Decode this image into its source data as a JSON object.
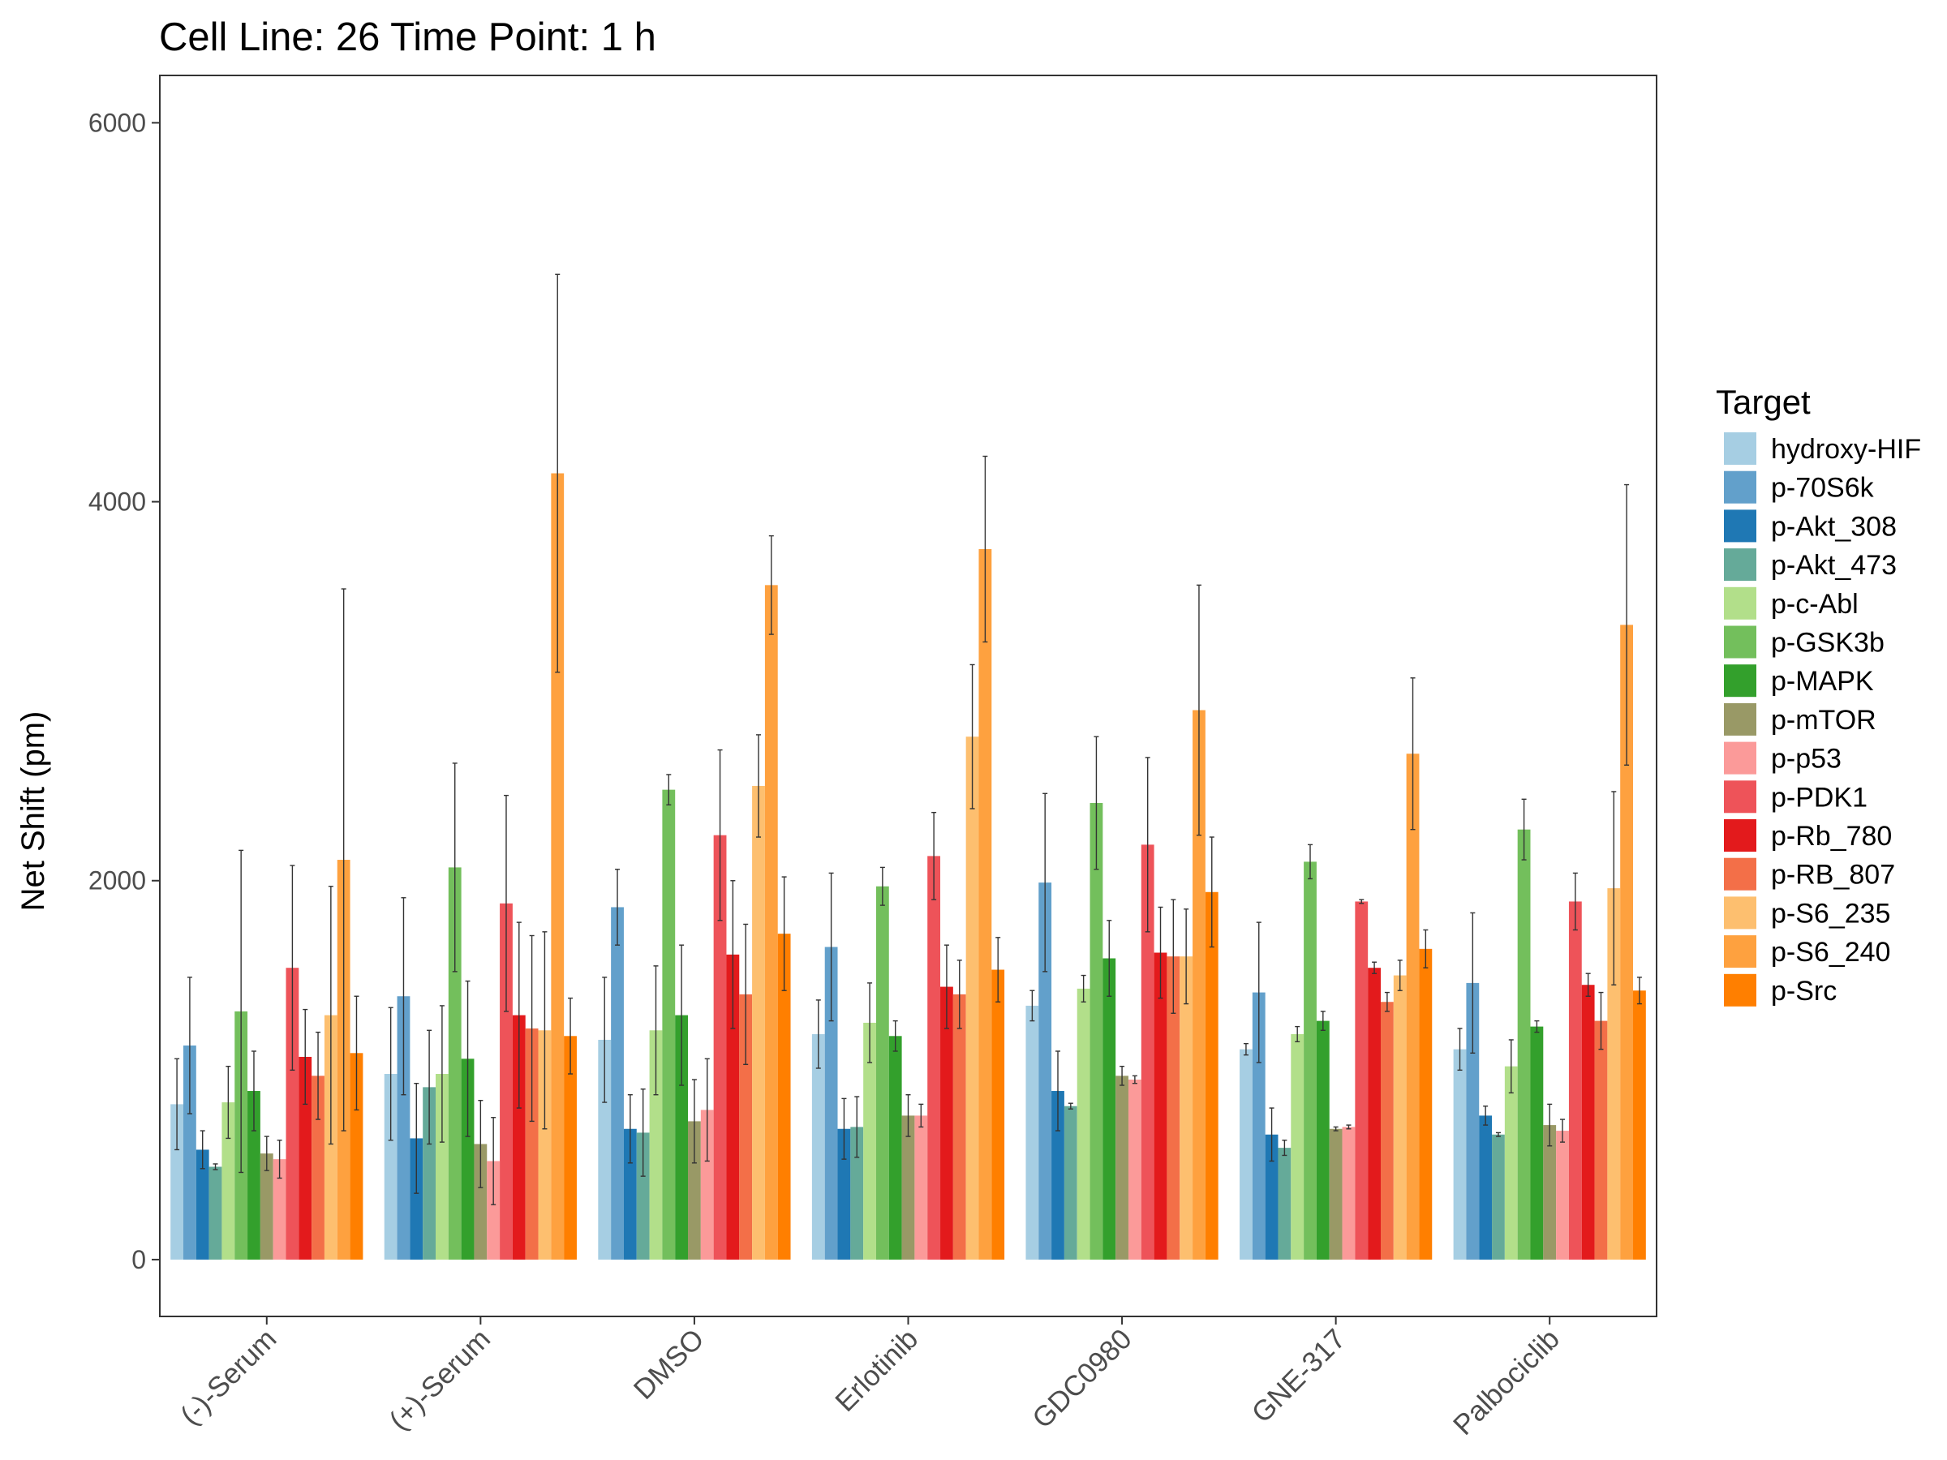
{
  "chart_data": {
    "type": "bar",
    "title": "Cell Line: 26 Time Point: 1 h",
    "ylabel": "Net Shift (pm)",
    "xlabel": "",
    "ylim": [
      -300,
      6250
    ],
    "yticks": [
      0,
      2000,
      4000,
      6000
    ],
    "grid": false,
    "legend": {
      "title": "Target",
      "position": "right"
    },
    "categories": [
      "(-)-Serum",
      "(+)-Serum",
      "DMSO",
      "Erlotinib",
      "GDC0980",
      "GNE-317",
      "Palbociclib"
    ],
    "series": [
      {
        "name": "hydroxy-HIF",
        "color": "#a6cee3",
        "values": [
          820,
          980,
          1160,
          1190,
          1340,
          1110,
          1110
        ],
        "err": [
          240,
          350,
          330,
          180,
          80,
          30,
          110
        ]
      },
      {
        "name": "p-70S6k",
        "color": "#62a0cb",
        "values": [
          1130,
          1390,
          1860,
          1650,
          1990,
          1410,
          1460
        ],
        "err": [
          360,
          520,
          200,
          390,
          470,
          370,
          370
        ]
      },
      {
        "name": "p-Akt_308",
        "color": "#1f78b4",
        "values": [
          580,
          640,
          690,
          690,
          890,
          660,
          760
        ],
        "err": [
          100,
          290,
          180,
          160,
          210,
          140,
          50
        ]
      },
      {
        "name": "p-Akt_473",
        "color": "#65aa99",
        "values": [
          490,
          910,
          670,
          700,
          810,
          590,
          660
        ],
        "err": [
          15,
          300,
          230,
          160,
          15,
          40,
          10
        ]
      },
      {
        "name": "p-c-Abl",
        "color": "#b2df8a",
        "values": [
          830,
          980,
          1210,
          1250,
          1430,
          1190,
          1020
        ],
        "err": [
          190,
          360,
          340,
          210,
          70,
          40,
          140
        ]
      },
      {
        "name": "p-GSK3b",
        "color": "#73bf5c",
        "values": [
          1310,
          2070,
          2480,
          1970,
          2410,
          2100,
          2270
        ],
        "err": [
          850,
          550,
          80,
          100,
          350,
          90,
          160
        ]
      },
      {
        "name": "p-MAPK",
        "color": "#33a02c",
        "values": [
          890,
          1060,
          1290,
          1180,
          1590,
          1260,
          1230
        ],
        "err": [
          210,
          410,
          370,
          80,
          200,
          50,
          30
        ]
      },
      {
        "name": "p-mTOR",
        "color": "#999966",
        "values": [
          560,
          610,
          730,
          760,
          970,
          690,
          710
        ],
        "err": [
          90,
          230,
          220,
          110,
          50,
          10,
          110
        ]
      },
      {
        "name": "p-p53",
        "color": "#fb9a99",
        "values": [
          530,
          520,
          790,
          760,
          950,
          700,
          680
        ],
        "err": [
          100,
          230,
          270,
          60,
          20,
          10,
          60
        ]
      },
      {
        "name": "p-PDK1",
        "color": "#ee5359",
        "values": [
          1540,
          1880,
          2240,
          2130,
          2190,
          1890,
          1890
        ],
        "err": [
          540,
          570,
          450,
          230,
          460,
          10,
          150
        ]
      },
      {
        "name": "p-Rb_780",
        "color": "#e31a1c",
        "values": [
          1070,
          1290,
          1610,
          1440,
          1620,
          1540,
          1450
        ],
        "err": [
          250,
          490,
          390,
          220,
          240,
          30,
          60
        ]
      },
      {
        "name": "p-RB_807",
        "color": "#f36f48",
        "values": [
          970,
          1220,
          1400,
          1400,
          1600,
          1360,
          1260
        ],
        "err": [
          230,
          490,
          370,
          180,
          300,
          50,
          150
        ]
      },
      {
        "name": "p-S6_235",
        "color": "#fdbf6f",
        "values": [
          1290,
          1210,
          2500,
          2760,
          1600,
          1500,
          1960
        ],
        "err": [
          680,
          520,
          270,
          380,
          250,
          80,
          510
        ]
      },
      {
        "name": "p-S6_240",
        "color": "#fea13f",
        "values": [
          2110,
          4150,
          3560,
          3750,
          2900,
          2670,
          3350
        ],
        "err": [
          1430,
          1050,
          260,
          490,
          660,
          400,
          740
        ]
      },
      {
        "name": "p-Src",
        "color": "#ff7f00",
        "values": [
          1090,
          1180,
          1720,
          1530,
          1940,
          1640,
          1420
        ],
        "err": [
          300,
          200,
          300,
          170,
          290,
          100,
          70
        ]
      }
    ]
  }
}
